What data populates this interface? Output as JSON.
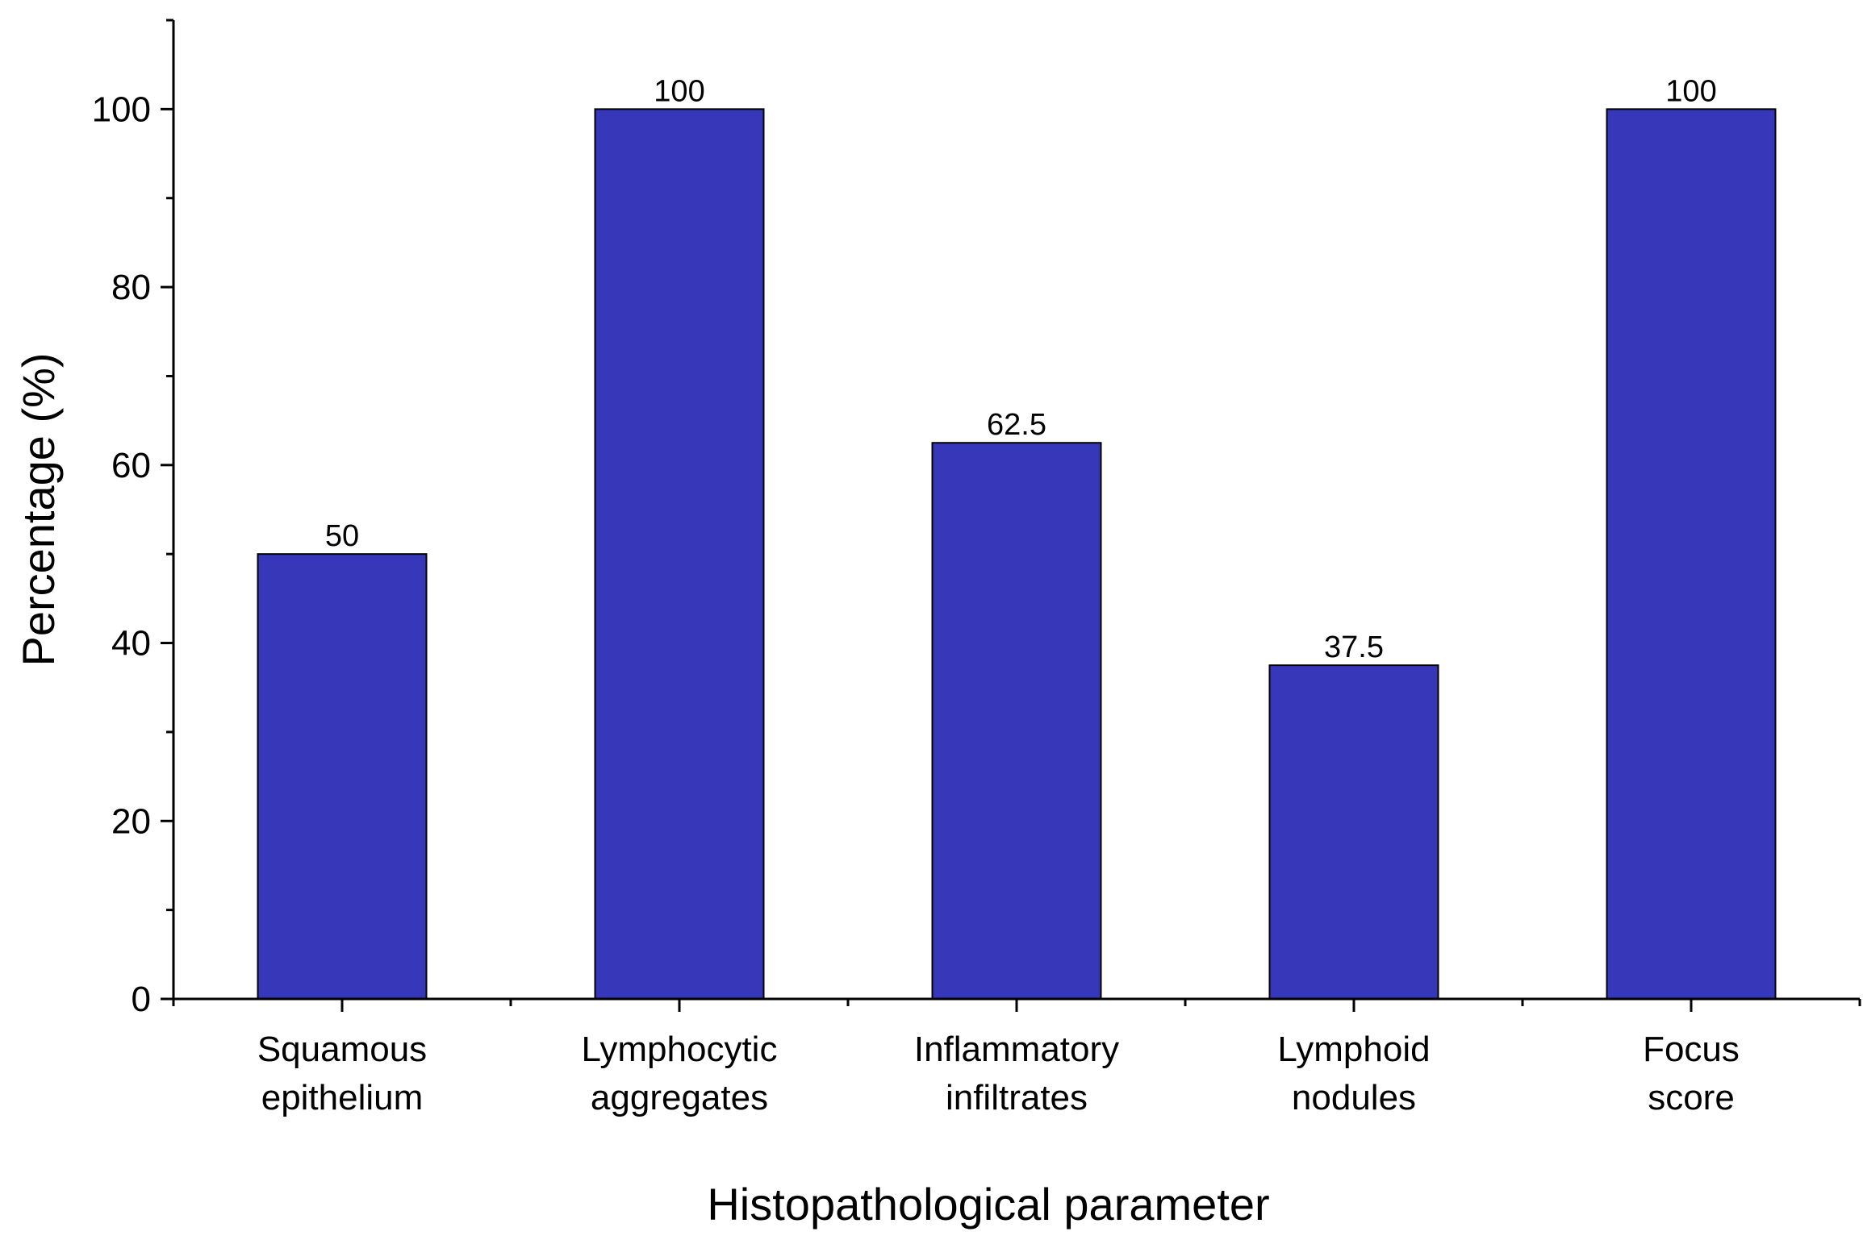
{
  "chart_data": {
    "type": "bar",
    "categories": [
      [
        "Squamous",
        "epithelium"
      ],
      [
        "Lymphocytic",
        "aggregates"
      ],
      [
        "Inflammatory",
        "infiltrates"
      ],
      [
        "Lymphoid",
        "nodules"
      ],
      [
        "Focus",
        "score"
      ]
    ],
    "values": [
      50,
      100,
      62.5,
      37.5,
      100
    ],
    "value_labels": [
      "50",
      "100",
      "62.5",
      "37.5",
      "100"
    ],
    "xlabel": "Histopathological parameter",
    "ylabel": "Percentage (%)",
    "ylim": [
      0,
      110
    ],
    "yticks": [
      0,
      20,
      40,
      60,
      80,
      100
    ],
    "ytick_labels": [
      "0",
      "20",
      "40",
      "60",
      "80",
      "100"
    ],
    "grid": false,
    "bar_color": "#3737b9",
    "bar_edge_color": "#000000"
  }
}
